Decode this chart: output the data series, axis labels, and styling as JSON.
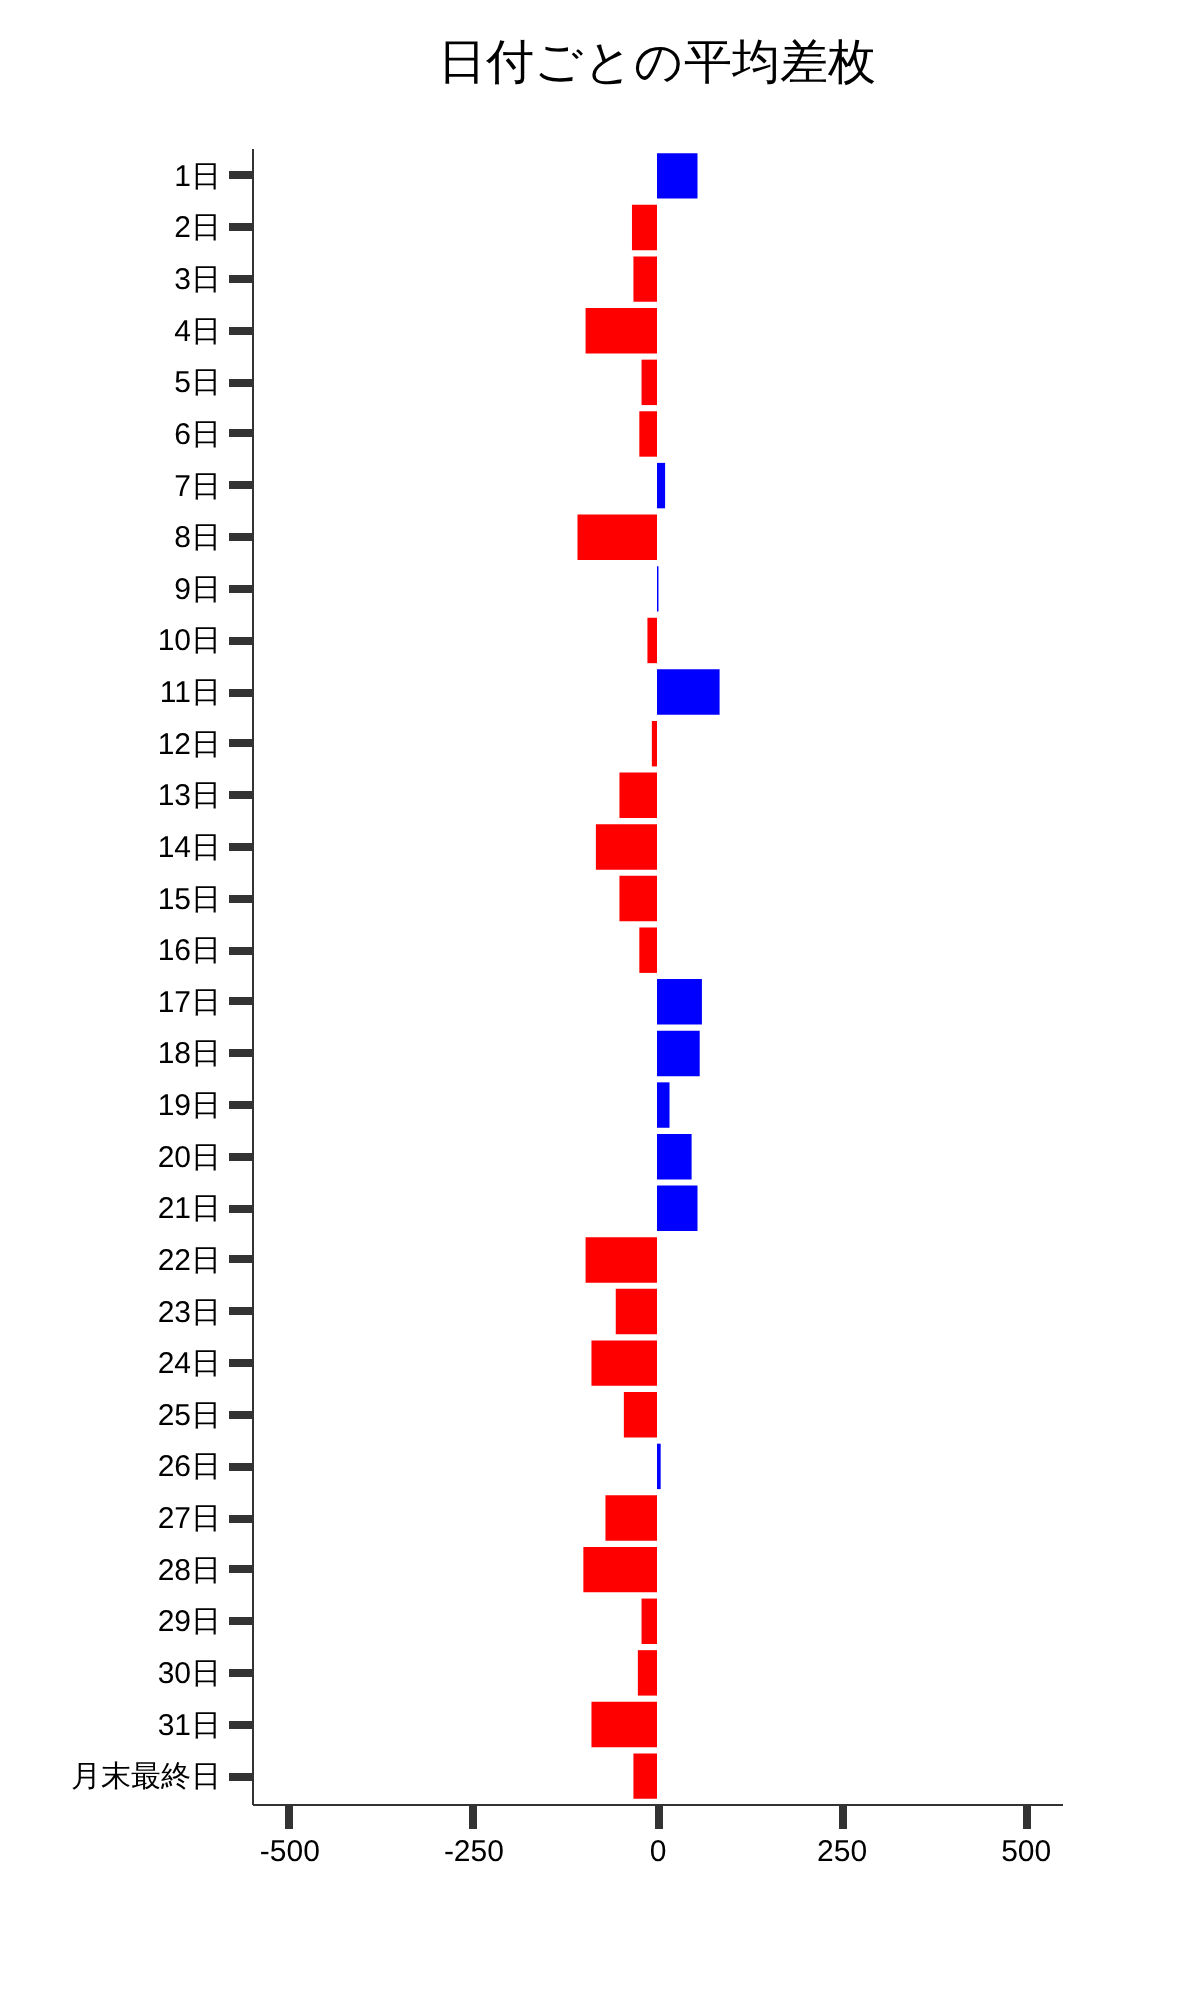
{
  "chart_data": {
    "type": "bar",
    "orientation": "horizontal",
    "title": "日付ごとの平均差枚",
    "categories": [
      "1日",
      "2日",
      "3日",
      "4日",
      "5日",
      "6日",
      "7日",
      "8日",
      "9日",
      "10日",
      "11日",
      "12日",
      "13日",
      "14日",
      "15日",
      "16日",
      "17日",
      "18日",
      "19日",
      "20日",
      "21日",
      "22日",
      "23日",
      "24日",
      "25日",
      "26日",
      "27日",
      "28日",
      "29日",
      "30日",
      "31日",
      "月末最終日"
    ],
    "values": [
      55,
      -34,
      -32,
      -97,
      -21,
      -24,
      11,
      -108,
      2,
      -13,
      85,
      -7,
      -51,
      -83,
      -51,
      -24,
      61,
      58,
      17,
      47,
      55,
      -97,
      -56,
      -89,
      -45,
      5,
      -70,
      -100,
      -21,
      -26,
      -89,
      -32
    ],
    "colors": [
      "#0000ff",
      "#ff0000",
      "#ff0000",
      "#ff0000",
      "#ff0000",
      "#ff0000",
      "#0000ff",
      "#ff0000",
      "#0000ff",
      "#ff0000",
      "#0000ff",
      "#ff0000",
      "#ff0000",
      "#ff0000",
      "#ff0000",
      "#ff0000",
      "#0000ff",
      "#0000ff",
      "#0000ff",
      "#0000ff",
      "#0000ff",
      "#ff0000",
      "#ff0000",
      "#ff0000",
      "#ff0000",
      "#0000ff",
      "#ff0000",
      "#ff0000",
      "#ff0000",
      "#ff0000",
      "#ff0000",
      "#ff0000"
    ],
    "xlim": [
      -550,
      550
    ],
    "xticks": [
      -500,
      -250,
      0,
      250,
      500
    ],
    "grid": false
  }
}
